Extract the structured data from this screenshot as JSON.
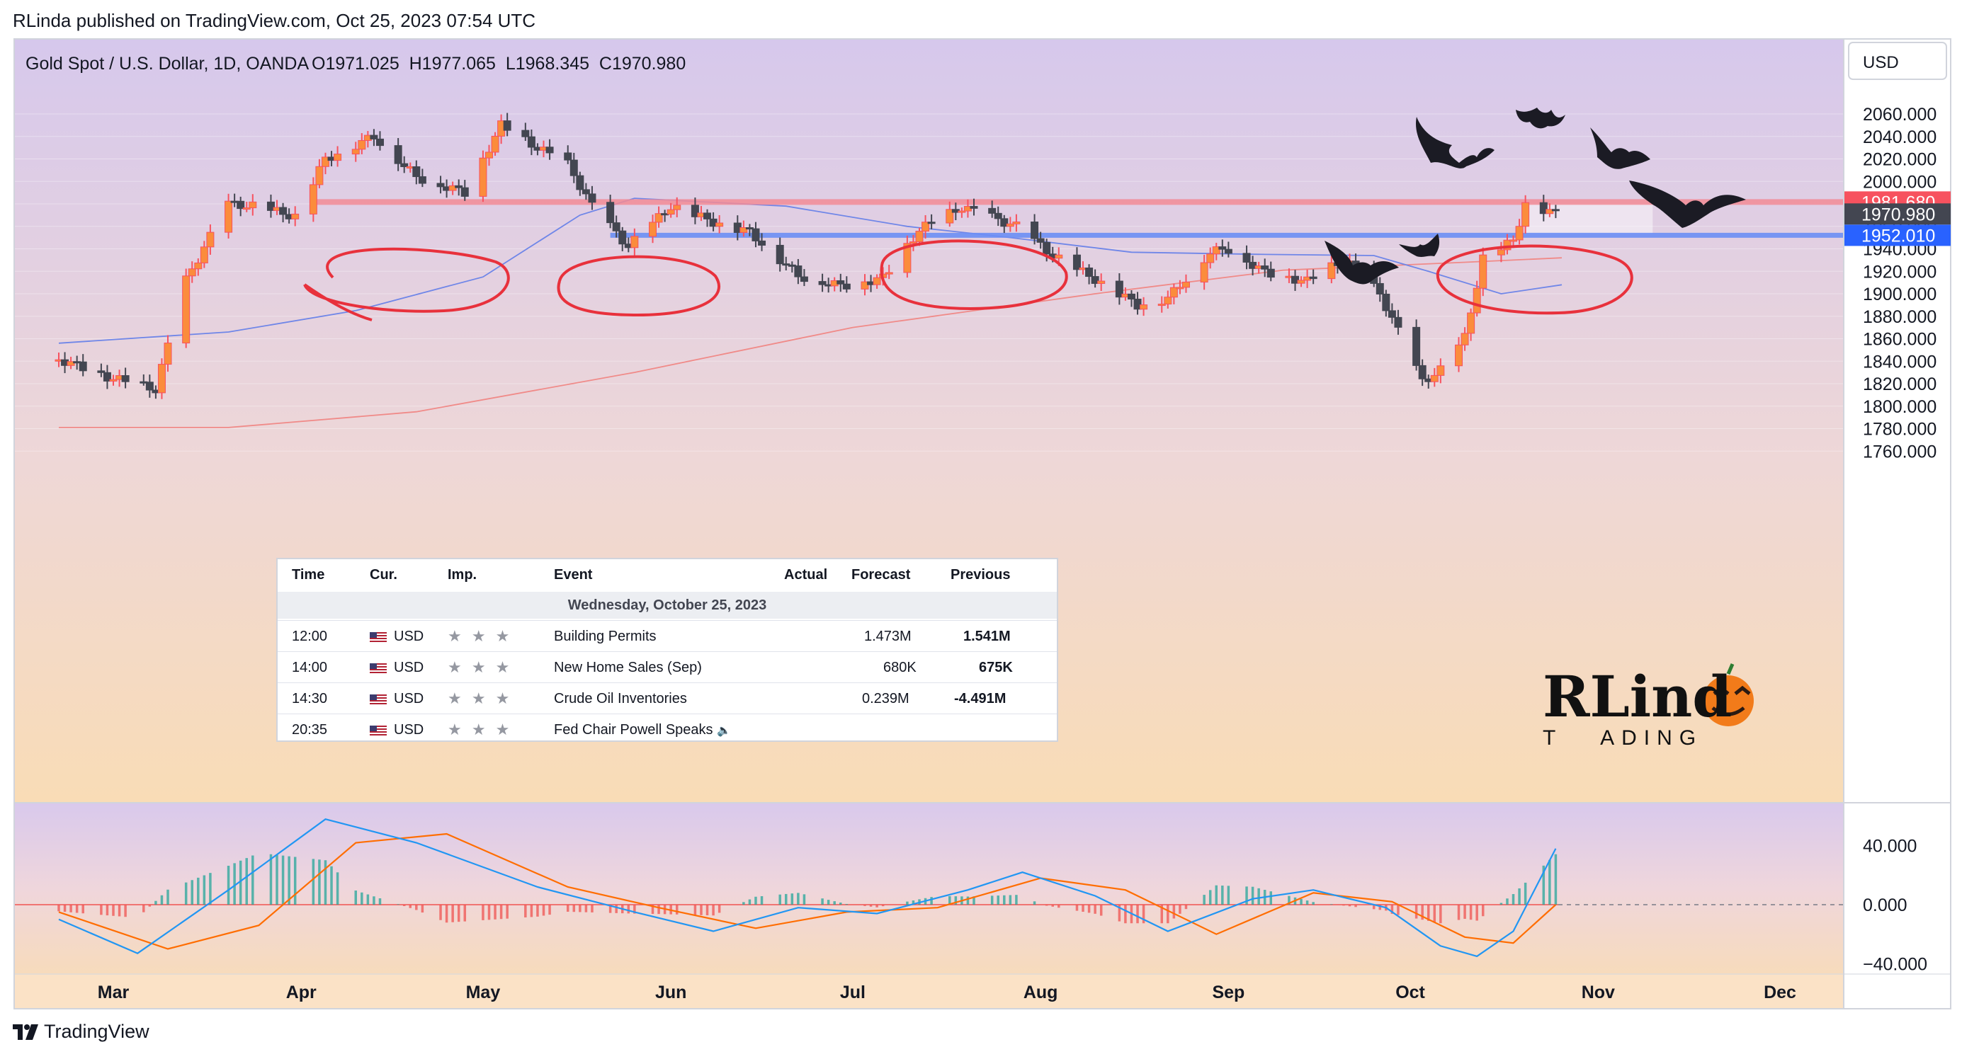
{
  "header": {
    "publisher": "RLinda published on TradingView.com, Oct 25, 2023 07:54 UTC",
    "symbol": "Gold Spot / U.S. Dollar, 1D, OANDA",
    "ohlc": "O1971.025  H1977.065  L1968.345  C1970.980",
    "currency": "USD"
  },
  "footer": {
    "brand": "TradingView"
  },
  "watermark": {
    "top": "RLind",
    "bottom": "T   ADING"
  },
  "colors": {
    "up": "#f7525f",
    "up_body": "#fb8c3c",
    "down": "#434651",
    "resistance": "#f28b95",
    "support": "#6c8ef5",
    "ma_fast": "#6f86e8",
    "ma_slow": "#f08a88",
    "macd": "#2196f3",
    "signal": "#ff6d00",
    "hist_pos": "#26a69a",
    "hist_neg": "#ef5350"
  },
  "chart_data": [
    {
      "type": "candlestick",
      "title": "Gold Spot / U.S. Dollar, 1D, OANDA",
      "x_labels": [
        "Mar",
        "Apr",
        "May",
        "Jun",
        "Jul",
        "Aug",
        "Sep",
        "Oct",
        "Nov",
        "Dec"
      ],
      "ylim": [
        1750,
        2075
      ],
      "y_ticks": [
        "2060.000",
        "2040.000",
        "2020.000",
        "2000.000",
        "1980.000",
        "1960.000",
        "1940.000",
        "1920.000",
        "1900.000",
        "1880.000",
        "1860.000",
        "1840.000",
        "1820.000",
        "1800.000",
        "1780.000",
        "1760.000"
      ],
      "y_tick_values": [
        2060,
        2040,
        2020,
        2000,
        1980,
        1960,
        1940,
        1920,
        1900,
        1880,
        1860,
        1840,
        1820,
        1800,
        1780,
        1760
      ],
      "price_labels": [
        {
          "text": "1981.680",
          "value": 1981.68,
          "color": "#f7525f"
        },
        {
          "text": "1970.980",
          "value": 1970.98,
          "color": "#434651"
        },
        {
          "text": "1952.010",
          "value": 1952.01,
          "color": "#2962ff"
        }
      ],
      "levels": [
        {
          "name": "resistance",
          "value": 1981.68
        },
        {
          "name": "support",
          "value": 1952.01
        }
      ],
      "close_path": [
        {
          "date": "2023-02-20",
          "value": 1842
        },
        {
          "date": "2023-02-28",
          "value": 1826
        },
        {
          "date": "2023-03-08",
          "value": 1815
        },
        {
          "date": "2023-03-13",
          "value": 1912
        },
        {
          "date": "2023-03-20",
          "value": 1980
        },
        {
          "date": "2023-03-24",
          "value": 1978
        },
        {
          "date": "2023-03-31",
          "value": 1969
        },
        {
          "date": "2023-04-05",
          "value": 2020
        },
        {
          "date": "2023-04-13",
          "value": 2040
        },
        {
          "date": "2023-04-20",
          "value": 2004
        },
        {
          "date": "2023-04-28",
          "value": 1990
        },
        {
          "date": "2023-05-04",
          "value": 2050
        },
        {
          "date": "2023-05-10",
          "value": 2030
        },
        {
          "date": "2023-05-15",
          "value": 2015
        },
        {
          "date": "2023-05-19",
          "value": 1978
        },
        {
          "date": "2023-05-25",
          "value": 1942
        },
        {
          "date": "2023-06-01",
          "value": 1978
        },
        {
          "date": "2023-06-08",
          "value": 1964
        },
        {
          "date": "2023-06-14",
          "value": 1955
        },
        {
          "date": "2023-06-22",
          "value": 1916
        },
        {
          "date": "2023-06-29",
          "value": 1907
        },
        {
          "date": "2023-07-06",
          "value": 1914
        },
        {
          "date": "2023-07-12",
          "value": 1957
        },
        {
          "date": "2023-07-19",
          "value": 1977
        },
        {
          "date": "2023-07-25",
          "value": 1966
        },
        {
          "date": "2023-07-28",
          "value": 1960
        },
        {
          "date": "2023-08-03",
          "value": 1934
        },
        {
          "date": "2023-08-10",
          "value": 1913
        },
        {
          "date": "2023-08-17",
          "value": 1890
        },
        {
          "date": "2023-08-22",
          "value": 1896
        },
        {
          "date": "2023-08-29",
          "value": 1937
        },
        {
          "date": "2023-09-01",
          "value": 1940
        },
        {
          "date": "2023-09-07",
          "value": 1919
        },
        {
          "date": "2023-09-14",
          "value": 1911
        },
        {
          "date": "2023-09-20",
          "value": 1931
        },
        {
          "date": "2023-09-26",
          "value": 1900
        },
        {
          "date": "2023-10-03",
          "value": 1822
        },
        {
          "date": "2023-10-06",
          "value": 1832
        },
        {
          "date": "2023-10-10",
          "value": 1861
        },
        {
          "date": "2023-10-13",
          "value": 1932
        },
        {
          "date": "2023-10-18",
          "value": 1947
        },
        {
          "date": "2023-10-20",
          "value": 1981
        },
        {
          "date": "2023-10-25",
          "value": 1971
        }
      ],
      "ma_fast": [
        {
          "date": "2023-02-20",
          "value": 1856
        },
        {
          "date": "2023-03-20",
          "value": 1866
        },
        {
          "date": "2023-04-10",
          "value": 1885
        },
        {
          "date": "2023-05-01",
          "value": 1915
        },
        {
          "date": "2023-05-17",
          "value": 1970
        },
        {
          "date": "2023-05-26",
          "value": 1985
        },
        {
          "date": "2023-06-20",
          "value": 1978
        },
        {
          "date": "2023-07-10",
          "value": 1960
        },
        {
          "date": "2023-07-27",
          "value": 1950
        },
        {
          "date": "2023-08-16",
          "value": 1937
        },
        {
          "date": "2023-09-07",
          "value": 1935
        },
        {
          "date": "2023-09-25",
          "value": 1934
        },
        {
          "date": "2023-10-04",
          "value": 1920
        },
        {
          "date": "2023-10-16",
          "value": 1900
        },
        {
          "date": "2023-10-26",
          "value": 1908
        }
      ],
      "ma_slow": [
        {
          "date": "2023-02-20",
          "value": 1781
        },
        {
          "date": "2023-03-20",
          "value": 1781
        },
        {
          "date": "2023-04-20",
          "value": 1795
        },
        {
          "date": "2023-05-26",
          "value": 1830
        },
        {
          "date": "2023-07-01",
          "value": 1870
        },
        {
          "date": "2023-08-10",
          "value": 1900
        },
        {
          "date": "2023-09-10",
          "value": 1921
        },
        {
          "date": "2023-10-10",
          "value": 1928
        },
        {
          "date": "2023-10-26",
          "value": 1932
        }
      ],
      "highlight_zone": {
        "date_from": "2023-10-20",
        "date_to": "2023-11-10",
        "y_from": 1953,
        "y_to": 1980
      },
      "annotations": [
        "circled highs at resistance (Apr, May, Jul, Oct)",
        "bats"
      ]
    },
    {
      "type": "macd",
      "ylim": [
        -45,
        70
      ],
      "y_ticks": [
        "40.000",
        "0.000",
        "−40.000"
      ],
      "y_tick_values": [
        40,
        0,
        -40
      ],
      "macd": [
        {
          "date": "2023-02-20",
          "value": -10
        },
        {
          "date": "2023-03-05",
          "value": -33
        },
        {
          "date": "2023-03-20",
          "value": 10
        },
        {
          "date": "2023-04-05",
          "value": 58
        },
        {
          "date": "2023-04-20",
          "value": 42
        },
        {
          "date": "2023-05-10",
          "value": 12
        },
        {
          "date": "2023-05-26",
          "value": -5
        },
        {
          "date": "2023-06-08",
          "value": -18
        },
        {
          "date": "2023-06-22",
          "value": -2
        },
        {
          "date": "2023-07-05",
          "value": -6
        },
        {
          "date": "2023-07-20",
          "value": 10
        },
        {
          "date": "2023-07-29",
          "value": 22
        },
        {
          "date": "2023-08-10",
          "value": 6
        },
        {
          "date": "2023-08-22",
          "value": -18
        },
        {
          "date": "2023-09-05",
          "value": 4
        },
        {
          "date": "2023-09-15",
          "value": 10
        },
        {
          "date": "2023-09-27",
          "value": -2
        },
        {
          "date": "2023-10-06",
          "value": -28
        },
        {
          "date": "2023-10-12",
          "value": -35
        },
        {
          "date": "2023-10-18",
          "value": -18
        },
        {
          "date": "2023-10-25",
          "value": 38
        }
      ],
      "signal": [
        {
          "date": "2023-02-20",
          "value": -5
        },
        {
          "date": "2023-03-10",
          "value": -30
        },
        {
          "date": "2023-03-25",
          "value": -14
        },
        {
          "date": "2023-04-10",
          "value": 42
        },
        {
          "date": "2023-04-25",
          "value": 48
        },
        {
          "date": "2023-05-15",
          "value": 12
        },
        {
          "date": "2023-05-30",
          "value": -2
        },
        {
          "date": "2023-06-15",
          "value": -16
        },
        {
          "date": "2023-06-30",
          "value": -5
        },
        {
          "date": "2023-07-15",
          "value": -2
        },
        {
          "date": "2023-08-01",
          "value": 18
        },
        {
          "date": "2023-08-15",
          "value": 10
        },
        {
          "date": "2023-08-30",
          "value": -20
        },
        {
          "date": "2023-09-15",
          "value": 8
        },
        {
          "date": "2023-09-28",
          "value": 2
        },
        {
          "date": "2023-10-10",
          "value": -22
        },
        {
          "date": "2023-10-18",
          "value": -26
        },
        {
          "date": "2023-10-25",
          "value": 0
        }
      ]
    }
  ],
  "calendar": {
    "headers": [
      "Time",
      "Cur.",
      "Imp.",
      "Event",
      "Actual",
      "Forecast",
      "Previous"
    ],
    "date": "Wednesday, October 25, 2023",
    "rows": [
      {
        "time": "12:00",
        "cur": "USD",
        "stars": "★ ★ ★",
        "event": "Building Permits",
        "actual": "",
        "forecast": "1.473M",
        "previous": "1.541M"
      },
      {
        "time": "14:00",
        "cur": "USD",
        "stars": "★ ★ ★",
        "event": "New Home Sales (Sep)",
        "actual": "",
        "forecast": "680K",
        "previous": "675K"
      },
      {
        "time": "14:30",
        "cur": "USD",
        "stars": "★ ★ ★",
        "event": "Crude Oil Inventories",
        "actual": "",
        "forecast": "0.239M",
        "previous": "-4.491M"
      },
      {
        "time": "20:35",
        "cur": "USD",
        "stars": "★ ★ ★",
        "event": "Fed Chair Powell Speaks",
        "actual": "",
        "forecast": "",
        "previous": ""
      }
    ]
  }
}
